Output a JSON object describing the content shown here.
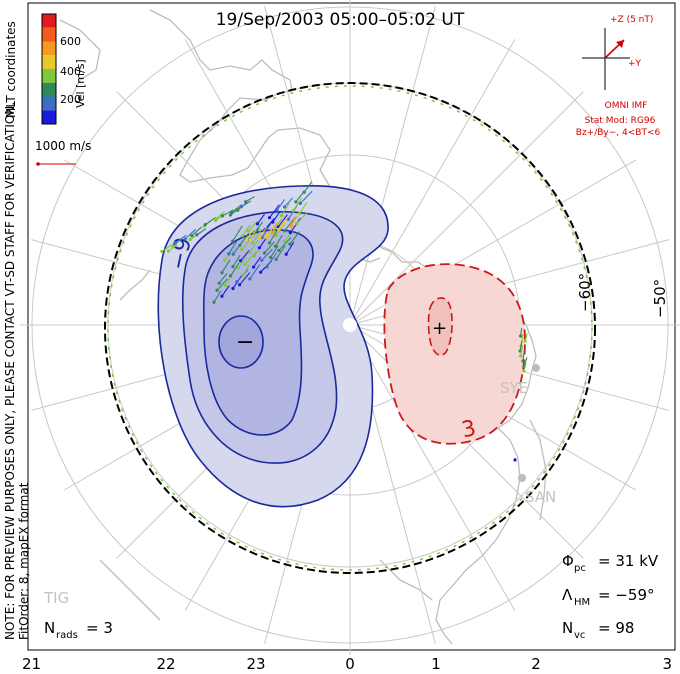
{
  "title": "19/Sep/2003 05:00–05:02 UT",
  "coordinates_label": "MLT coordinates",
  "colorbar": {
    "label": "Vel [m/s]",
    "ticks": [
      "600",
      "400",
      "200"
    ],
    "colors": [
      "#e41a1c",
      "#f25c1e",
      "#f59a1f",
      "#e8c82a",
      "#7ec83a",
      "#2e8b57",
      "#3a6fc4",
      "#1a1adf"
    ]
  },
  "vector_scale": "1000 m/s",
  "side_notice": "NOTE: FOR PREVIEW PURPOSES ONLY, PLEASE CONTACT VT-SD STAFF FOR VERIFICATION.",
  "fit_info": "FitOrder: 8, mapEX format",
  "imf": {
    "z_label": "+Z (5 nT)",
    "y_label": "+Y",
    "source": "OMNI IMF",
    "model": "Stat Mod: RG96",
    "condition": "Bz+/By−, 4<BT<6"
  },
  "latitude_labels": [
    "−60°",
    "−50°"
  ],
  "contour_labels": {
    "negative": "−9",
    "positive": "3",
    "min_mark": "−",
    "max_mark": "+"
  },
  "stations": [
    "SYE",
    "SAN",
    "TIG"
  ],
  "stats": {
    "phi_symbol": "Φ",
    "phi_sub": "pc",
    "phi_value": "= 31 kV",
    "lambda_symbol": "Λ",
    "lambda_sub": "HM",
    "lambda_value": "= −59°",
    "nvc_symbol": "N",
    "nvc_sub": "vc",
    "nvc_value": "= 98"
  },
  "nrads": {
    "symbol": "N",
    "sub": "rads",
    "value": "= 3"
  },
  "mlt_axis": [
    "21",
    "22",
    "23",
    "0",
    "1",
    "2",
    "3"
  ],
  "colors": {
    "negative_fill": "#d6d8ee",
    "negative_line": "#1a2a9c",
    "positive_fill": "#f6d7d4",
    "positive_line": "#cc1a1a",
    "land": "#bdbdbd",
    "grid": "#c8c8c8",
    "annotation_red": "#d40000"
  }
}
